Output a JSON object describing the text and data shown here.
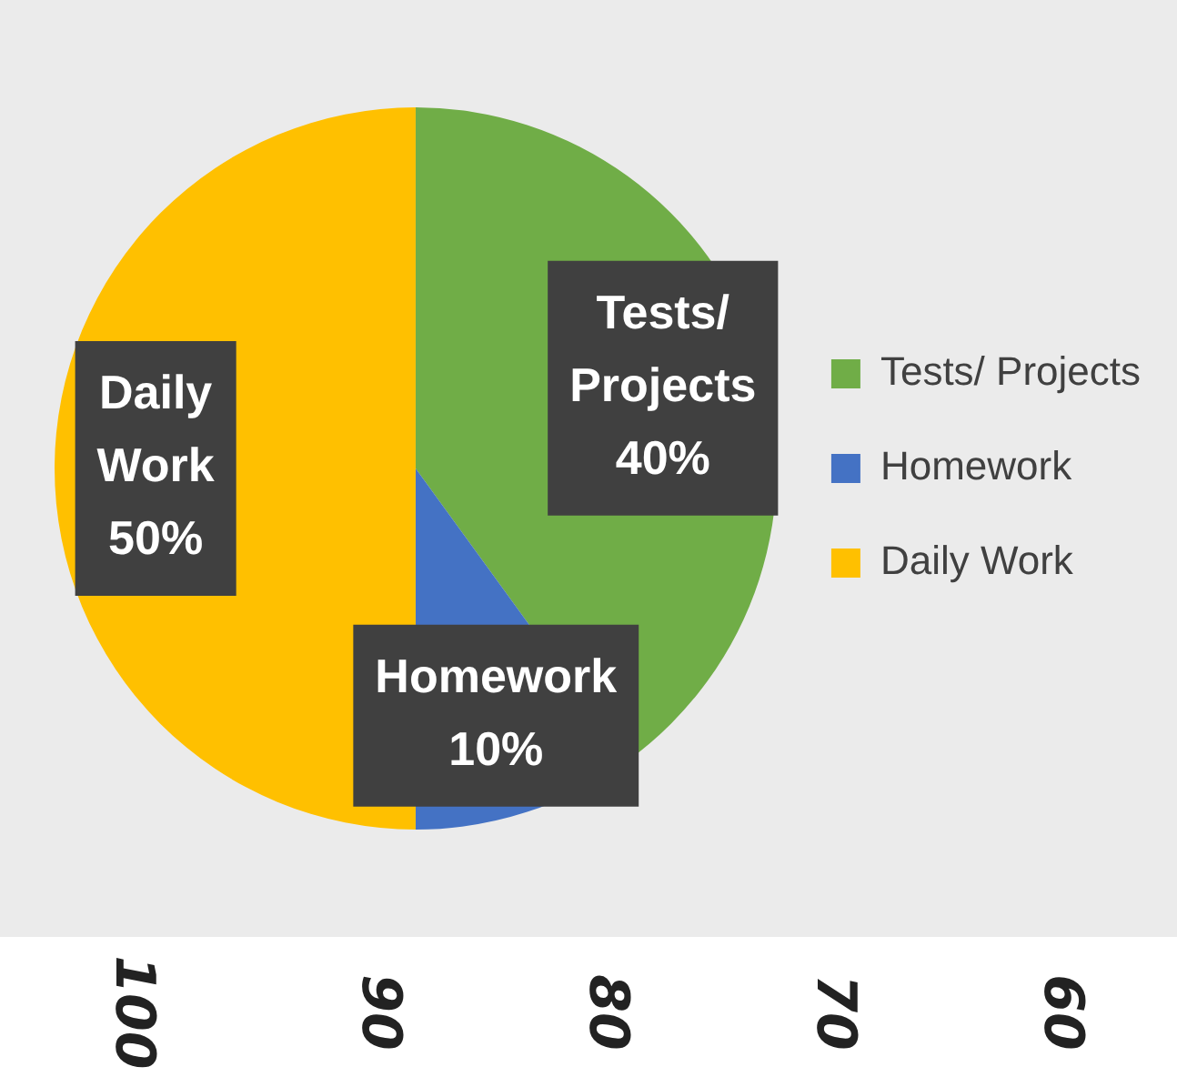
{
  "chart_data": {
    "type": "pie",
    "categories": [
      "Tests/ Projects",
      "Homework",
      "Daily Work"
    ],
    "values": [
      40,
      10,
      50
    ],
    "colors": [
      "#70ad47",
      "#4472c4",
      "#ffc000"
    ],
    "value_labels": [
      "40%",
      "10%",
      "50%"
    ],
    "legend": "right",
    "annotations": [
      "100",
      "90",
      "80",
      "70",
      "60"
    ]
  }
}
